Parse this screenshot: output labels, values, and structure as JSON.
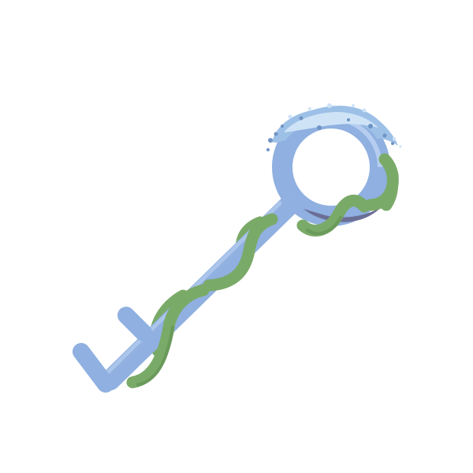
{
  "illustration": {
    "subject": "key",
    "parts": [
      "key-ring",
      "key-shaft",
      "key-teeth",
      "vine",
      "frost"
    ],
    "colors": {
      "background": "#ffffff",
      "key_body": "#8fb0e0",
      "key_shadow": "#6f8fc8",
      "key_highlight": "#b6cdf0",
      "ring_inner_shadow": "#6b6f95",
      "vine": "#7aaa68",
      "vine_dark": "#5f8f52",
      "frost_light": "#cfe3f7",
      "frost_mid": "#9cc0e6",
      "frost_dark": "#6f93c4"
    }
  }
}
